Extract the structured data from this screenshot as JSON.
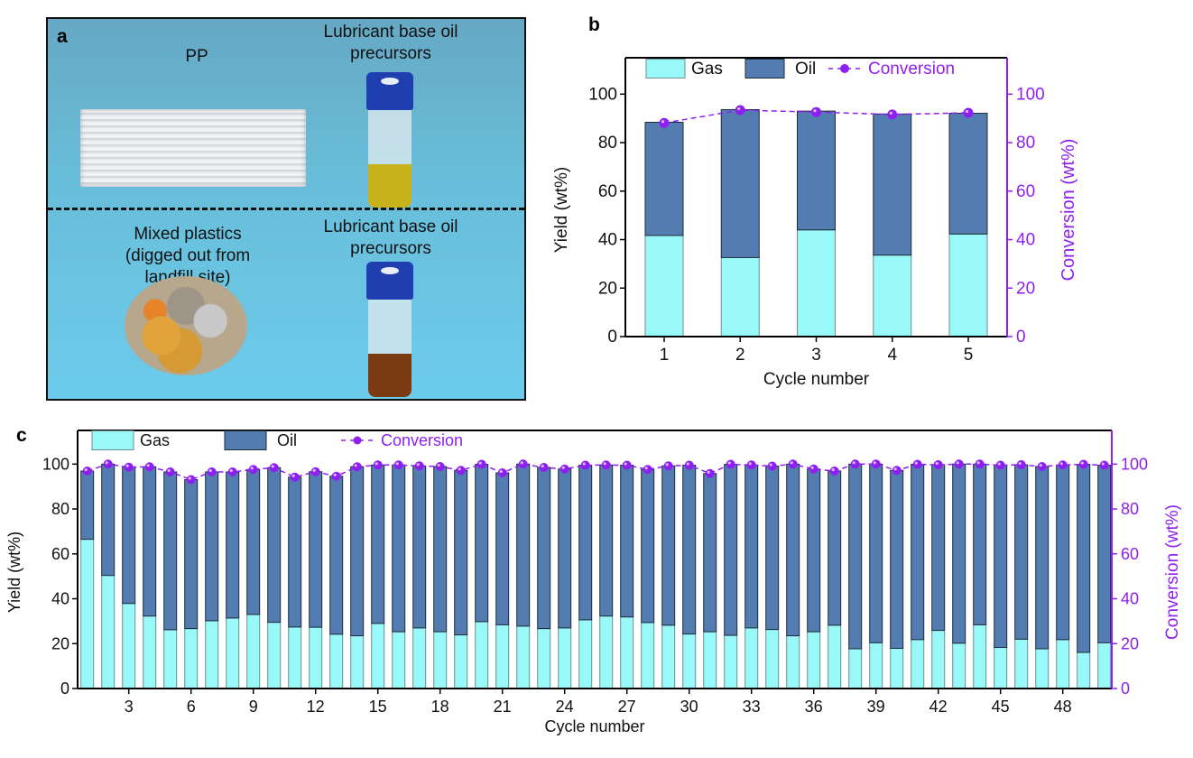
{
  "panel_a": {
    "letter": "a",
    "top_left_label": "PP",
    "top_right_label_line1": "Lubricant base oil",
    "top_right_label_line2": "precursors",
    "bottom_left_label_line1": "Mixed plastics",
    "bottom_left_label_line2": "(digged out from",
    "bottom_left_label_line3": "landfill site)",
    "bottom_right_label_line1": "Lubricant base oil",
    "bottom_right_label_line2": "precursors",
    "colors": {
      "top_liquid": "#c8b21c",
      "bottom_liquid": "#7a3a12",
      "cap": "#1f3fb0"
    }
  },
  "chart_data": [
    {
      "id": "b",
      "letter": "b",
      "type": "bar",
      "stacked": true,
      "title": "",
      "xlabel": "Cycle number",
      "ylabel": "Yield (wt%)",
      "y2label": "Conversion (wt%)",
      "categories": [
        "1",
        "2",
        "3",
        "4",
        "5"
      ],
      "ylim": [
        0,
        115
      ],
      "y2lim": [
        0,
        115
      ],
      "yticks": [
        0,
        20,
        40,
        60,
        80,
        100
      ],
      "y2ticks": [
        0,
        20,
        40,
        60,
        80,
        100
      ],
      "grid": false,
      "legend": {
        "position": "top",
        "entries": [
          "Gas",
          "Oil",
          "Conversion"
        ]
      },
      "series": [
        {
          "name": "Gas",
          "type": "bar",
          "color": "#99f9f9",
          "values": [
            41.7,
            32.6,
            44.0,
            33.6,
            42.3
          ]
        },
        {
          "name": "Oil",
          "type": "bar",
          "color": "#537db1",
          "values": [
            46.7,
            61.0,
            49.0,
            58.2,
            49.8
          ]
        },
        {
          "name": "Conversion",
          "type": "line",
          "axis": "right",
          "color": "#8f1ff0",
          "values": [
            88.1,
            93.4,
            92.6,
            91.6,
            92.3
          ]
        }
      ]
    },
    {
      "id": "c",
      "letter": "c",
      "type": "bar",
      "stacked": true,
      "title": "",
      "xlabel": "Cycle number",
      "ylabel": "Yield (wt%)",
      "y2label": "Conversion (wt%)",
      "categories": [
        "1",
        "2",
        "3",
        "4",
        "5",
        "6",
        "7",
        "8",
        "9",
        "10",
        "11",
        "12",
        "13",
        "14",
        "15",
        "16",
        "17",
        "18",
        "19",
        "20",
        "21",
        "22",
        "23",
        "24",
        "25",
        "26",
        "27",
        "28",
        "29",
        "30",
        "31",
        "32",
        "33",
        "34",
        "35",
        "36",
        "37",
        "38",
        "39",
        "40",
        "41",
        "42",
        "43",
        "44",
        "45",
        "46",
        "47",
        "48",
        "49",
        "50"
      ],
      "xticks": [
        "3",
        "6",
        "9",
        "12",
        "15",
        "18",
        "21",
        "24",
        "27",
        "30",
        "33",
        "36",
        "39",
        "42",
        "45",
        "48"
      ],
      "ylim": [
        0,
        115
      ],
      "y2lim": [
        0,
        115
      ],
      "yticks": [
        0,
        20,
        40,
        60,
        80,
        100
      ],
      "y2ticks": [
        0,
        20,
        40,
        60,
        80,
        100
      ],
      "grid": false,
      "legend": {
        "position": "top-left",
        "entries": [
          "Gas",
          "Oil",
          "Conversion"
        ]
      },
      "series": [
        {
          "name": "Gas",
          "type": "bar",
          "color": "#99f9f9",
          "values": [
            66.5,
            50.4,
            37.9,
            32.3,
            26.2,
            26.7,
            30.2,
            31.4,
            33.0,
            29.5,
            27.4,
            27.3,
            24.2,
            23.5,
            29.0,
            25.3,
            27.0,
            25.3,
            23.9,
            29.8,
            28.4,
            27.8,
            26.7,
            27.0,
            30.6,
            32.3,
            31.9,
            29.4,
            28.2,
            24.3,
            25.3,
            23.7,
            27.0,
            26.3,
            23.5,
            25.3,
            28.2,
            17.7,
            20.4,
            17.9,
            21.8,
            25.9,
            20.2,
            28.4,
            18.3,
            22.0,
            17.7,
            21.8,
            16.1,
            20.4
          ]
        },
        {
          "name": "Oil",
          "type": "bar",
          "color": "#537db1",
          "values": [
            30.4,
            49.6,
            60.9,
            66.5,
            70.3,
            66.4,
            66.3,
            65.1,
            64.6,
            68.9,
            66.8,
            69.3,
            70.4,
            75.3,
            70.6,
            74.3,
            72.2,
            73.6,
            73.3,
            70.1,
            67.7,
            72.2,
            71.8,
            70.8,
            68.9,
            67.3,
            67.6,
            68.2,
            71.0,
            75.2,
            70.5,
            76.2,
            72.6,
            72.8,
            76.5,
            72.5,
            68.7,
            82.3,
            79.6,
            79.3,
            78.1,
            73.8,
            79.8,
            71.6,
            81.2,
            77.7,
            81.2,
            77.8,
            83.8,
            79.1
          ]
        },
        {
          "name": "Conversion",
          "type": "line",
          "axis": "right",
          "color": "#8f1ff0",
          "values": [
            96.9,
            100.0,
            98.6,
            98.8,
            96.5,
            93.1,
            96.5,
            96.5,
            97.6,
            98.4,
            94.2,
            96.6,
            94.6,
            98.8,
            99.6,
            99.6,
            99.2,
            98.9,
            97.2,
            99.9,
            96.1,
            100.0,
            98.5,
            97.8,
            99.5,
            99.6,
            99.5,
            97.6,
            99.2,
            99.5,
            95.8,
            99.9,
            99.6,
            99.1,
            100.0,
            97.8,
            96.9,
            100.0,
            100.0,
            97.2,
            99.9,
            99.7,
            100.0,
            100.0,
            99.5,
            99.7,
            98.9,
            99.6,
            99.9,
            99.5
          ]
        }
      ]
    }
  ]
}
